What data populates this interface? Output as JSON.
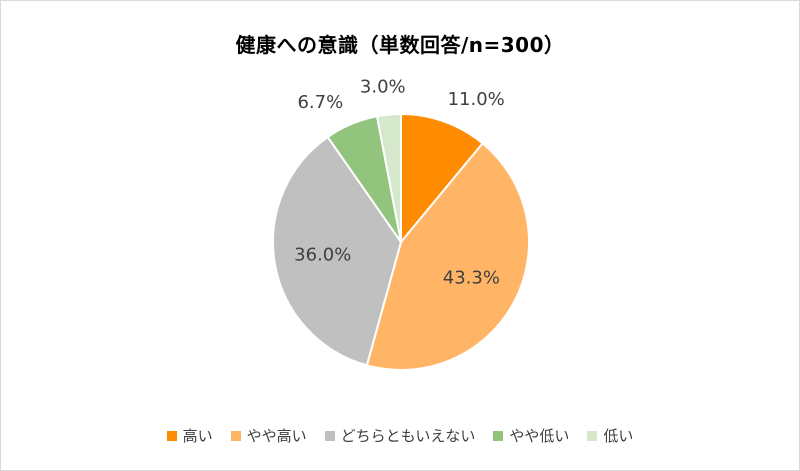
{
  "chart_data": {
    "type": "pie",
    "title": "健康への意識（単数回答/n=300）",
    "categories": [
      "高い",
      "やや高い",
      "どちらともいえない",
      "やや低い",
      "低い"
    ],
    "values": [
      11.0,
      43.3,
      36.0,
      6.7,
      3.0
    ],
    "data_labels": [
      "11.0%",
      "43.3%",
      "36.0%",
      "6.7%",
      "3.0%"
    ],
    "colors": [
      "#ff8c00",
      "#ffb466",
      "#c0c0c0",
      "#93c47d",
      "#d5e8cc"
    ],
    "legend_position": "bottom"
  }
}
